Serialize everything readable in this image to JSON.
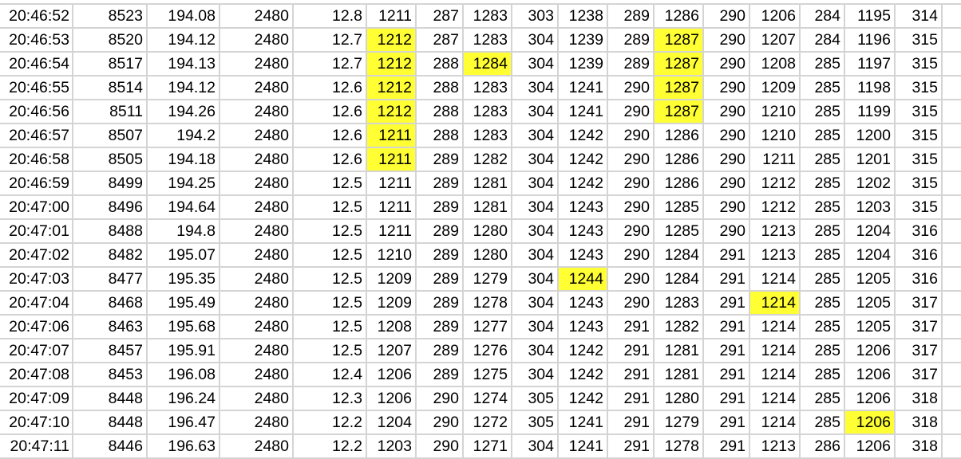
{
  "sheet": {
    "highlight_color": "#ffff33",
    "rows": [
      [
        "20:46:52",
        "8523",
        "194.08",
        "2480",
        "12.8",
        "1211",
        "287",
        "1283",
        "303",
        "1238",
        "289",
        "1286",
        "290",
        "1206",
        "284",
        "1195",
        "314",
        ""
      ],
      [
        "20:46:53",
        "8520",
        "194.12",
        "2480",
        "12.7",
        "1212",
        "287",
        "1283",
        "304",
        "1239",
        "289",
        "1287",
        "290",
        "1207",
        "284",
        "1196",
        "315",
        ""
      ],
      [
        "20:46:54",
        "8517",
        "194.13",
        "2480",
        "12.7",
        "1212",
        "288",
        "1284",
        "304",
        "1239",
        "289",
        "1287",
        "290",
        "1208",
        "285",
        "1197",
        "315",
        ""
      ],
      [
        "20:46:55",
        "8514",
        "194.12",
        "2480",
        "12.6",
        "1212",
        "288",
        "1283",
        "304",
        "1241",
        "290",
        "1287",
        "290",
        "1209",
        "285",
        "1198",
        "315",
        ""
      ],
      [
        "20:46:56",
        "8511",
        "194.26",
        "2480",
        "12.6",
        "1212",
        "288",
        "1283",
        "304",
        "1241",
        "290",
        "1287",
        "290",
        "1210",
        "285",
        "1199",
        "315",
        ""
      ],
      [
        "20:46:57",
        "8507",
        "194.2",
        "2480",
        "12.6",
        "1211",
        "288",
        "1283",
        "304",
        "1242",
        "290",
        "1286",
        "290",
        "1210",
        "285",
        "1200",
        "315",
        ""
      ],
      [
        "20:46:58",
        "8505",
        "194.18",
        "2480",
        "12.6",
        "1211",
        "289",
        "1282",
        "304",
        "1242",
        "290",
        "1286",
        "290",
        "1211",
        "285",
        "1201",
        "315",
        ""
      ],
      [
        "20:46:59",
        "8499",
        "194.25",
        "2480",
        "12.5",
        "1211",
        "289",
        "1281",
        "304",
        "1242",
        "290",
        "1286",
        "290",
        "1212",
        "285",
        "1202",
        "315",
        ""
      ],
      [
        "20:47:00",
        "8496",
        "194.64",
        "2480",
        "12.5",
        "1211",
        "289",
        "1281",
        "304",
        "1243",
        "290",
        "1285",
        "290",
        "1212",
        "285",
        "1203",
        "315",
        ""
      ],
      [
        "20:47:01",
        "8488",
        "194.8",
        "2480",
        "12.5",
        "1211",
        "289",
        "1280",
        "304",
        "1243",
        "290",
        "1285",
        "290",
        "1213",
        "285",
        "1204",
        "316",
        ""
      ],
      [
        "20:47:02",
        "8482",
        "195.07",
        "2480",
        "12.5",
        "1210",
        "289",
        "1280",
        "304",
        "1243",
        "290",
        "1284",
        "291",
        "1213",
        "285",
        "1204",
        "316",
        ""
      ],
      [
        "20:47:03",
        "8477",
        "195.35",
        "2480",
        "12.5",
        "1209",
        "289",
        "1279",
        "304",
        "1244",
        "290",
        "1284",
        "291",
        "1214",
        "285",
        "1205",
        "316",
        ""
      ],
      [
        "20:47:04",
        "8468",
        "195.49",
        "2480",
        "12.5",
        "1209",
        "289",
        "1278",
        "304",
        "1243",
        "290",
        "1283",
        "291",
        "1214",
        "285",
        "1205",
        "317",
        ""
      ],
      [
        "20:47:06",
        "8463",
        "195.68",
        "2480",
        "12.5",
        "1208",
        "289",
        "1277",
        "304",
        "1243",
        "291",
        "1282",
        "291",
        "1214",
        "285",
        "1205",
        "317",
        ""
      ],
      [
        "20:47:07",
        "8457",
        "195.91",
        "2480",
        "12.5",
        "1207",
        "289",
        "1276",
        "304",
        "1242",
        "291",
        "1281",
        "291",
        "1214",
        "285",
        "1206",
        "317",
        ""
      ],
      [
        "20:47:08",
        "8453",
        "196.08",
        "2480",
        "12.4",
        "1206",
        "289",
        "1275",
        "304",
        "1242",
        "291",
        "1281",
        "291",
        "1214",
        "285",
        "1206",
        "317",
        ""
      ],
      [
        "20:47:09",
        "8448",
        "196.24",
        "2480",
        "12.3",
        "1206",
        "290",
        "1274",
        "305",
        "1242",
        "291",
        "1280",
        "291",
        "1214",
        "285",
        "1206",
        "318",
        ""
      ],
      [
        "20:47:10",
        "8448",
        "196.47",
        "2480",
        "12.2",
        "1204",
        "290",
        "1272",
        "305",
        "1241",
        "291",
        "1279",
        "291",
        "1214",
        "285",
        "1206",
        "318",
        ""
      ],
      [
        "20:47:11",
        "8446",
        "196.63",
        "2480",
        "12.2",
        "1203",
        "290",
        "1271",
        "304",
        "1241",
        "291",
        "1278",
        "291",
        "1213",
        "286",
        "1206",
        "318",
        ""
      ]
    ],
    "highlighted_cells": [
      [
        1,
        5
      ],
      [
        2,
        5
      ],
      [
        3,
        5
      ],
      [
        4,
        5
      ],
      [
        5,
        5
      ],
      [
        6,
        5
      ],
      [
        2,
        7
      ],
      [
        1,
        11
      ],
      [
        2,
        11
      ],
      [
        3,
        11
      ],
      [
        4,
        11
      ],
      [
        11,
        9
      ],
      [
        12,
        13
      ],
      [
        17,
        15
      ]
    ]
  }
}
